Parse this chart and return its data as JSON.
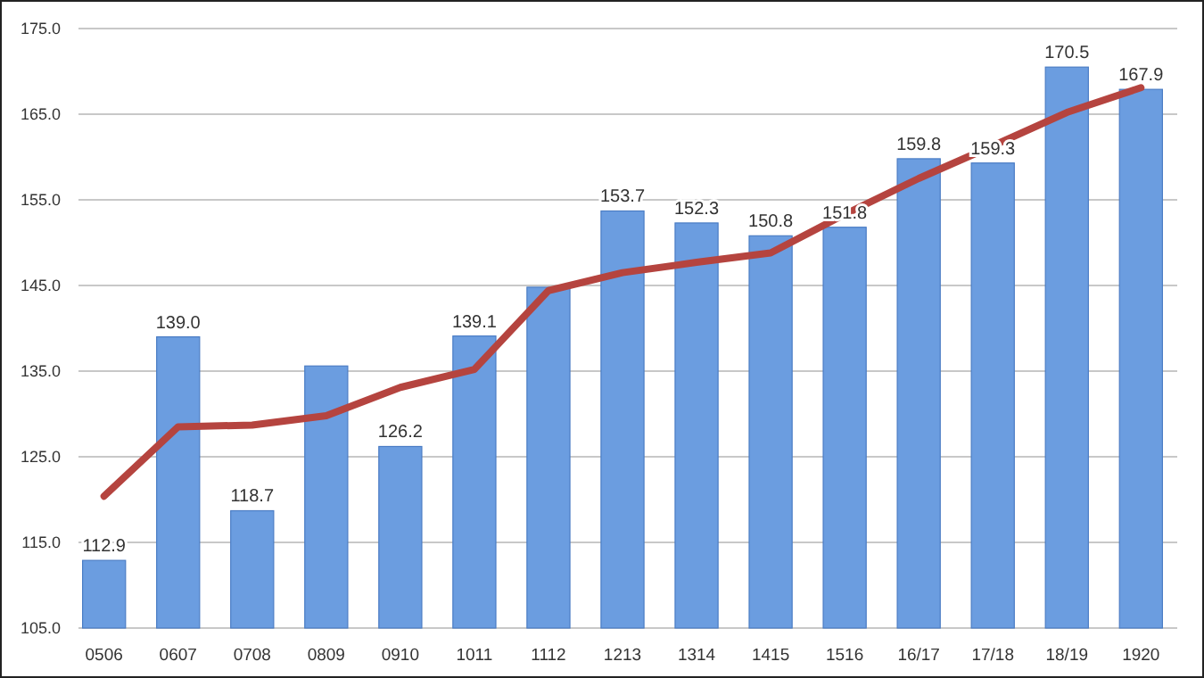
{
  "chart_data": {
    "type": "bar",
    "categories": [
      "0506",
      "0607",
      "0708",
      "0809",
      "0910",
      "1011",
      "1112",
      "1213",
      "1314",
      "1415",
      "1516",
      "16/17",
      "17/18",
      "18/19",
      "1920"
    ],
    "series": [
      {
        "color": "#6b9de0",
        "values": [
          112.9,
          139.0,
          118.7,
          135.6,
          126.2,
          139.1,
          144.8,
          153.7,
          152.3,
          150.8,
          151.8,
          159.8,
          159.3,
          170.5,
          167.9
        ],
        "value_labels": [
          "112.9",
          "139.0",
          "118.7",
          null,
          "126.2",
          "139.1",
          null,
          "153.7",
          "152.3",
          "150.8",
          "151.8",
          "159.8",
          "159.3",
          "170.5",
          "167.9"
        ]
      },
      {
        "type": "line",
        "color": "#b5443f",
        "values": [
          120.4,
          128.5,
          128.7,
          129.8,
          133.1,
          135.2,
          144.4,
          146.5,
          147.7,
          148.8,
          153.3,
          157.5,
          161.3,
          165.2,
          168.1
        ]
      }
    ],
    "ylim": [
      105,
      175
    ],
    "yticks": [
      {
        "value": 105,
        "label": "105.0"
      },
      {
        "value": 115,
        "label": "115.0"
      },
      {
        "value": 125,
        "label": "125.0"
      },
      {
        "value": 135,
        "label": "135.0"
      },
      {
        "value": 145,
        "label": "145.0"
      },
      {
        "value": 155,
        "label": "155.0"
      },
      {
        "value": 165,
        "label": "165.0"
      },
      {
        "value": 175,
        "label": "175.0"
      }
    ],
    "grid": "y",
    "marker": "none",
    "line_style": "solid"
  }
}
